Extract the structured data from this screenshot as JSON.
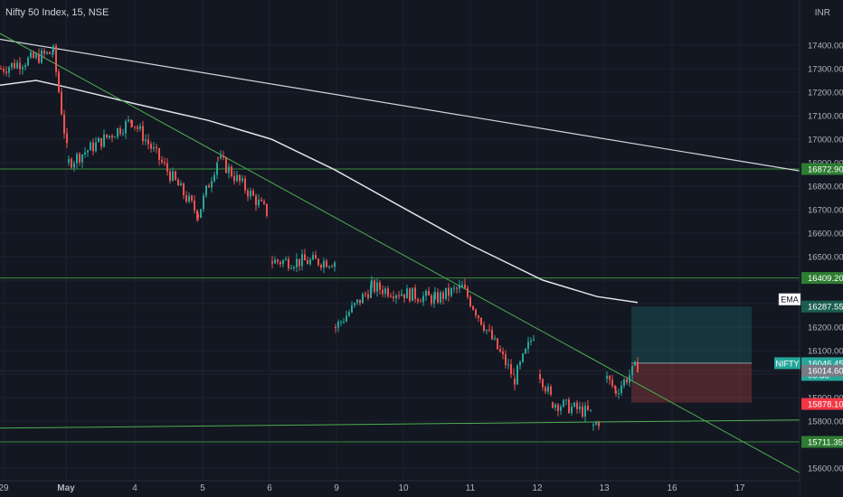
{
  "header": {
    "symbol_title": "Nifty 50 Index, 15, NSE",
    "currency": "INR"
  },
  "chart_data": {
    "type": "candlestick",
    "symbol": "NIFTY",
    "interval": "15",
    "exchange": "NSE",
    "ylim": [
      15560,
      17500
    ],
    "y_ticks": [
      15600,
      15700,
      15800,
      15900,
      16000,
      16100,
      16200,
      16300,
      16400,
      16500,
      16600,
      16700,
      16800,
      16900,
      17000,
      17100,
      17200,
      17300,
      17400
    ],
    "x_ticks": [
      "29",
      "May",
      "4",
      "5",
      "6",
      "9",
      "10",
      "11",
      "12",
      "13",
      "16",
      "17"
    ],
    "price_tags": [
      {
        "label": "16872.90",
        "value": 16872.9,
        "color": "#2e7d32"
      },
      {
        "label": "16409.20",
        "value": 16409.2,
        "color": "#2e7d32"
      },
      {
        "label": "16287.55",
        "value": 16287.55,
        "color": "#1b5e4f"
      },
      {
        "label": "16046.45",
        "value": 16046.45,
        "color": "#26a69a",
        "name": "NIFTY",
        "sub": "05:38"
      },
      {
        "label": "16014.60",
        "value": 16014.6,
        "color": "#787b86"
      },
      {
        "label": "15878.10",
        "value": 15878.1,
        "color": "#f23645"
      },
      {
        "label": "15711.35",
        "value": 15711.35,
        "color": "#2e7d32"
      }
    ],
    "indicator_label": "EMA",
    "horizontal_levels": [
      16872.9,
      16409.2,
      15711.35
    ],
    "position_box": {
      "entry": 16046.45,
      "target": 16287.55,
      "stop": 15878.1,
      "from": "13",
      "to": "16"
    },
    "colors": {
      "up": "#26a69a",
      "down": "#ef5350",
      "ema_fast": "#e0e3eb",
      "ema_slow": "#d1d4dc",
      "trend": "#4caf50",
      "level": "#388e3c"
    }
  }
}
